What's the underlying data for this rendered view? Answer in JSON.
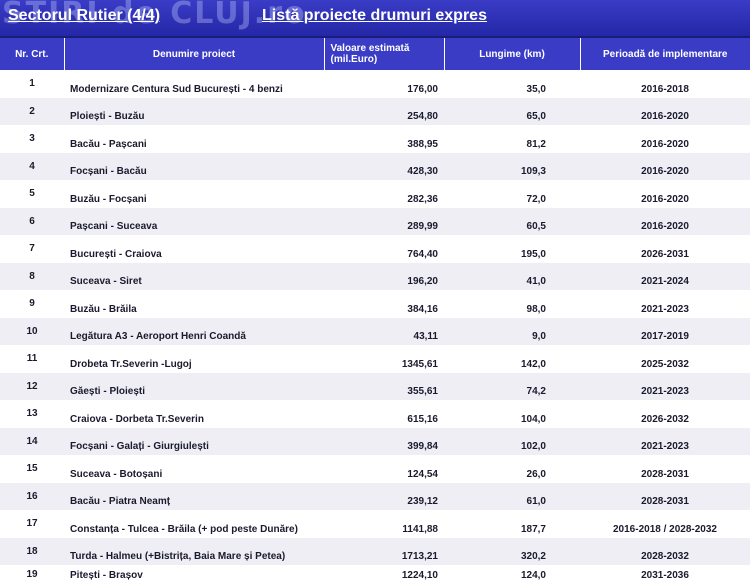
{
  "header": {
    "watermark": "STIRI de CLUJ.ro",
    "sector": "Sectorul Rutier (4/4)",
    "list_title": "Listă proiecte drumuri expres",
    "bg_color": "#3a3cc6"
  },
  "table": {
    "columns": {
      "nr": "Nr. Crt.",
      "name": "Denumire proiect",
      "value": "Valoare estimată (mil.Euro)",
      "length": "Lungime (km)",
      "period": "Perioadă de implementare"
    },
    "rows": [
      {
        "nr": "1",
        "name": "Modernizare Centura Sud București - 4 benzi",
        "value": "176,00",
        "length": "35,0",
        "period": "2016-2018"
      },
      {
        "nr": "2",
        "name": "Ploiești - Buzău",
        "value": "254,80",
        "length": "65,0",
        "period": "2016-2020"
      },
      {
        "nr": "3",
        "name": "Bacău - Pașcani",
        "value": "388,95",
        "length": "81,2",
        "period": "2016-2020"
      },
      {
        "nr": "4",
        "name": "Focșani - Bacău",
        "value": "428,30",
        "length": "109,3",
        "period": "2016-2020"
      },
      {
        "nr": "5",
        "name": "Buzău - Focșani",
        "value": "282,36",
        "length": "72,0",
        "period": "2016-2020"
      },
      {
        "nr": "6",
        "name": "Pașcani - Suceava",
        "value": "289,99",
        "length": "60,5",
        "period": "2016-2020"
      },
      {
        "nr": "7",
        "name": "București - Craiova",
        "value": "764,40",
        "length": "195,0",
        "period": "2026-2031"
      },
      {
        "nr": "8",
        "name": "Suceava - Siret",
        "value": "196,20",
        "length": "41,0",
        "period": "2021-2024"
      },
      {
        "nr": "9",
        "name": "Buzău - Brăila",
        "value": "384,16",
        "length": "98,0",
        "period": "2021-2023"
      },
      {
        "nr": "10",
        "name": "Legătura A3 - Aeroport Henri Coandă",
        "value": "43,11",
        "length": "9,0",
        "period": "2017-2019"
      },
      {
        "nr": "11",
        "name": "Drobeta Tr.Severin -Lugoj",
        "value": "1345,61",
        "length": "142,0",
        "period": "2025-2032"
      },
      {
        "nr": "12",
        "name": "Găești - Ploiești",
        "value": "355,61",
        "length": "74,2",
        "period": "2021-2023"
      },
      {
        "nr": "13",
        "name": "Craiova - Dorbeta Tr.Severin",
        "value": "615,16",
        "length": "104,0",
        "period": "2026-2032"
      },
      {
        "nr": "14",
        "name": "Focșani - Galați - Giurgiulești",
        "value": "399,84",
        "length": "102,0",
        "period": "2021-2023"
      },
      {
        "nr": "15",
        "name": "Suceava - Botoșani",
        "value": "124,54",
        "length": "26,0",
        "period": "2028-2031"
      },
      {
        "nr": "16",
        "name": "Bacău - Piatra Neamț",
        "value": "239,12",
        "length": "61,0",
        "period": "2028-2031"
      },
      {
        "nr": "17",
        "name": "Constanța - Tulcea - Brăila (+ pod peste Dunăre)",
        "value": "1141,88",
        "length": "187,7",
        "period": "2016-2018 / 2028-2032"
      },
      {
        "nr": "18",
        "name": "Turda - Halmeu (+Bistrița, Baia Mare și Petea)",
        "value": "1713,21",
        "length": "320,2",
        "period": "2028-2032"
      },
      {
        "nr": "19",
        "name": "Pitești - Brașov",
        "value": "1224,10",
        "length": "124,0",
        "period": "2031-2036"
      }
    ]
  }
}
